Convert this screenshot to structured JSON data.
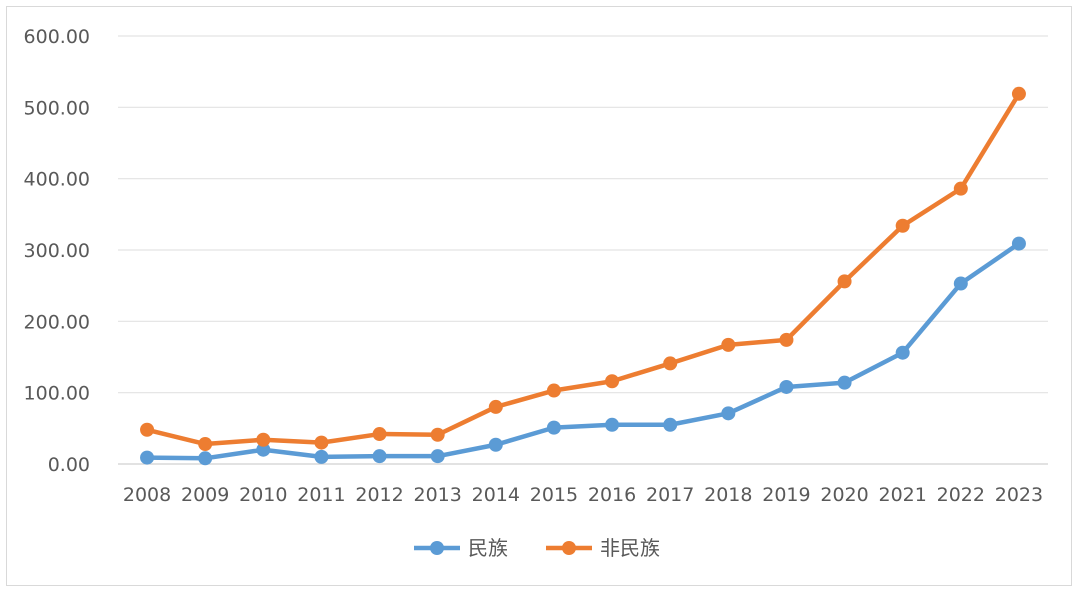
{
  "chart_data": {
    "type": "line",
    "title": "",
    "xlabel": "",
    "ylabel": "",
    "categories": [
      "2008",
      "2009",
      "2010",
      "2011",
      "2012",
      "2013",
      "2014",
      "2015",
      "2016",
      "2017",
      "2018",
      "2019",
      "2020",
      "2021",
      "2022",
      "2023"
    ],
    "yticks": [
      "0.00",
      "100.00",
      "200.00",
      "300.00",
      "400.00",
      "500.00",
      "600.00"
    ],
    "ylim": [
      0,
      600
    ],
    "grid": "horizontal",
    "legend_position": "bottom",
    "series": [
      {
        "name": "民族",
        "color": "#5b9bd5",
        "values": [
          9,
          8,
          20,
          10,
          11,
          11,
          27,
          51,
          55,
          55,
          71,
          108,
          114,
          156,
          253,
          309
        ]
      },
      {
        "name": "非民族",
        "color": "#ed7d31",
        "values": [
          48,
          28,
          34,
          30,
          42,
          41,
          80,
          103,
          116,
          141,
          167,
          174,
          256,
          334,
          386,
          519
        ]
      }
    ]
  }
}
